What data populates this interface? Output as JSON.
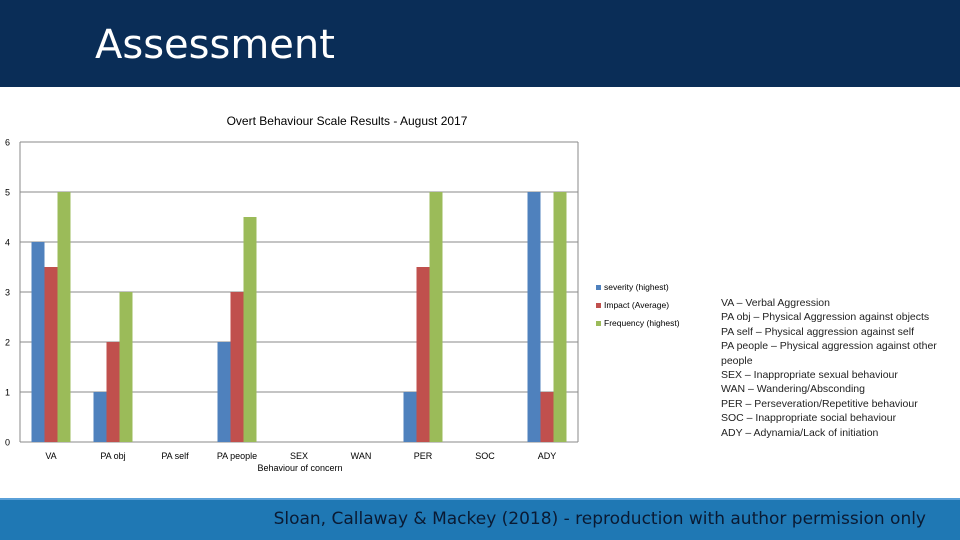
{
  "header": {
    "title": "Assessment"
  },
  "colors": {
    "header_bg": "#0a2d57",
    "footer_bg": "#1f78b4"
  },
  "chart_data": {
    "type": "bar",
    "title": "Overt Behaviour Scale Results - August 2017",
    "xlabel": "Behaviour of concern",
    "ylabel": "",
    "ylim": [
      0,
      6
    ],
    "yticks": [
      "0",
      "1",
      "2",
      "3",
      "4",
      "5",
      "6"
    ],
    "grid": true,
    "legend_position": "right",
    "categories": [
      "VA",
      "PA obj",
      "PA self",
      "PA people",
      "SEX",
      "WAN",
      "PER",
      "SOC",
      "ADY"
    ],
    "series": [
      {
        "name": "severity (highest)",
        "color": "#4f81bd",
        "values": [
          4,
          1,
          0,
          2,
          0,
          0,
          1,
          0,
          5
        ]
      },
      {
        "name": "Impact (Average)",
        "color": "#c0504d",
        "values": [
          3.5,
          2,
          0,
          3,
          0,
          0,
          3.5,
          0,
          1
        ]
      },
      {
        "name": "Frequency (highest)",
        "color": "#9bbb59",
        "values": [
          5,
          3,
          0,
          4.5,
          0,
          0,
          5,
          0,
          5
        ]
      }
    ]
  },
  "notes": [
    "VA – Verbal Aggression",
    "PA obj – Physical Aggression against objects",
    "PA self – Physical aggression against self",
    "PA people – Physical aggression against other people",
    "SEX – Inappropriate sexual behaviour",
    "WAN – Wandering/Absconding",
    "PER – Perseveration/Repetitive behaviour",
    "SOC – Inappropriate social behaviour",
    "ADY – Adynamia/Lack of initiation"
  ],
  "footer": {
    "citation": "Sloan, Callaway & Mackey (2018) - reproduction with author permission only"
  }
}
